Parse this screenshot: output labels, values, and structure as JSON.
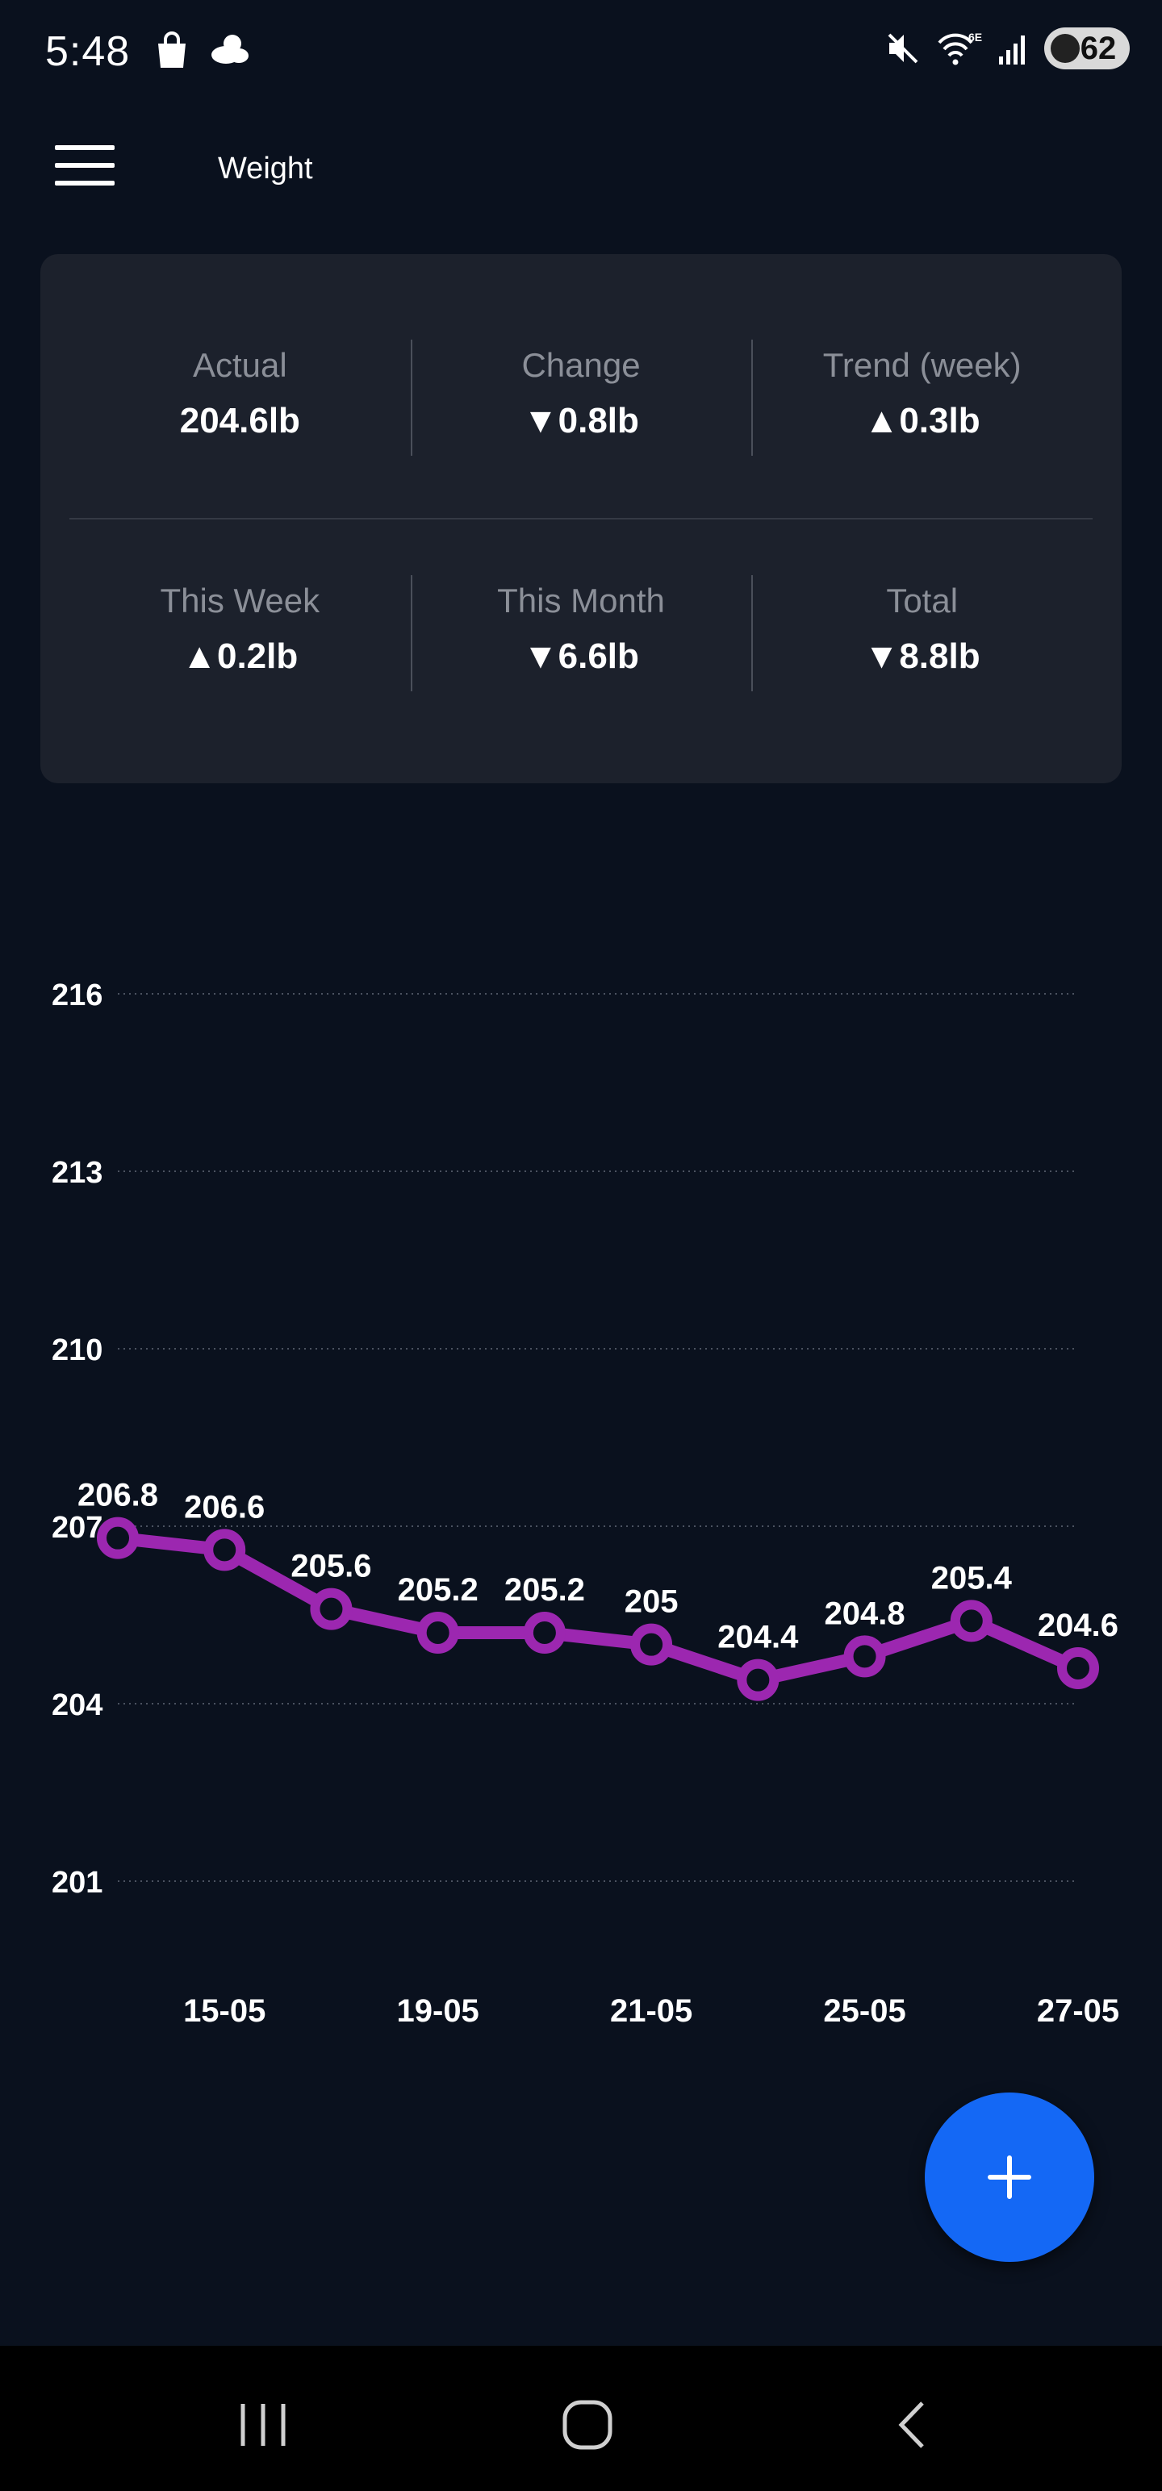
{
  "status_bar": {
    "time": "5:48",
    "left_icons": [
      "shopping-bag-icon",
      "weather-cloud-icon"
    ],
    "right_icons": [
      "mute-icon",
      "wifi-6e-icon",
      "signal-icon"
    ],
    "battery": "62"
  },
  "app_bar": {
    "title": "Weight",
    "menu_icon": "hamburger-menu-icon"
  },
  "stats": {
    "row1": [
      {
        "label": "Actual",
        "value": "204.6lb"
      },
      {
        "label": "Change",
        "value": "▼0.8lb"
      },
      {
        "label": "Trend (week)",
        "value": "▲0.3lb"
      }
    ],
    "row2": [
      {
        "label": "This Week",
        "value": "▲0.2lb"
      },
      {
        "label": "This Month",
        "value": "▼6.6lb"
      },
      {
        "label": "Total",
        "value": "▼8.8lb"
      }
    ]
  },
  "chart_data": {
    "type": "line",
    "y_ticks": [
      216,
      213,
      210,
      207,
      204,
      201
    ],
    "ylim": [
      201,
      216
    ],
    "x_tick_labels": [
      "15-05",
      "19-05",
      "21-05",
      "25-05",
      "27-05"
    ],
    "x_tick_point_index": [
      1,
      3,
      5,
      7,
      9
    ],
    "values": [
      206.8,
      206.6,
      205.6,
      205.2,
      205.2,
      205.0,
      204.4,
      204.8,
      205.4,
      204.6
    ],
    "data_labels": [
      "206.8",
      "206.6",
      "205.6",
      "205.2",
      "205.2",
      "205",
      "204.4",
      "204.8",
      "205.4",
      "204.6"
    ],
    "line_color": "#9c27b0",
    "grid": "dotted horizontal"
  },
  "fab": {
    "icon": "plus-icon",
    "color": "#1468f5"
  },
  "nav_bar": {
    "buttons": [
      "recent-apps-icon",
      "home-icon",
      "back-icon"
    ]
  }
}
